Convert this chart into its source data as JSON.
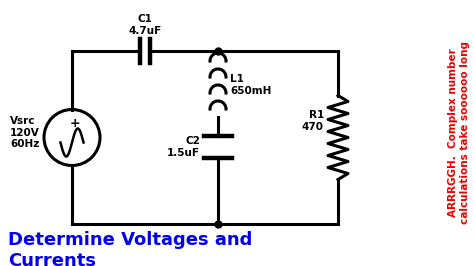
{
  "bg_color": "#ffffff",
  "circuit_color": "#000000",
  "title_text": "Determine Voltages and\nCurrents",
  "title_color": "#0000ee",
  "title_fontsize": 13,
  "side_text": "ARRRGGH.  Complex number\ncalculations take soooooo long",
  "side_color": "#ee0000",
  "side_fontsize": 7.5,
  "vsrc_label": "Vsrc\n120V\n60Hz",
  "c1_label": "C1\n4.7uF",
  "l1_label": "L1\n650mH",
  "c2_label": "C2\n1.5uF",
  "r1_label": "R1\n470",
  "lw": 2.2,
  "fig_w": 4.74,
  "fig_h": 2.66,
  "dpi": 100
}
